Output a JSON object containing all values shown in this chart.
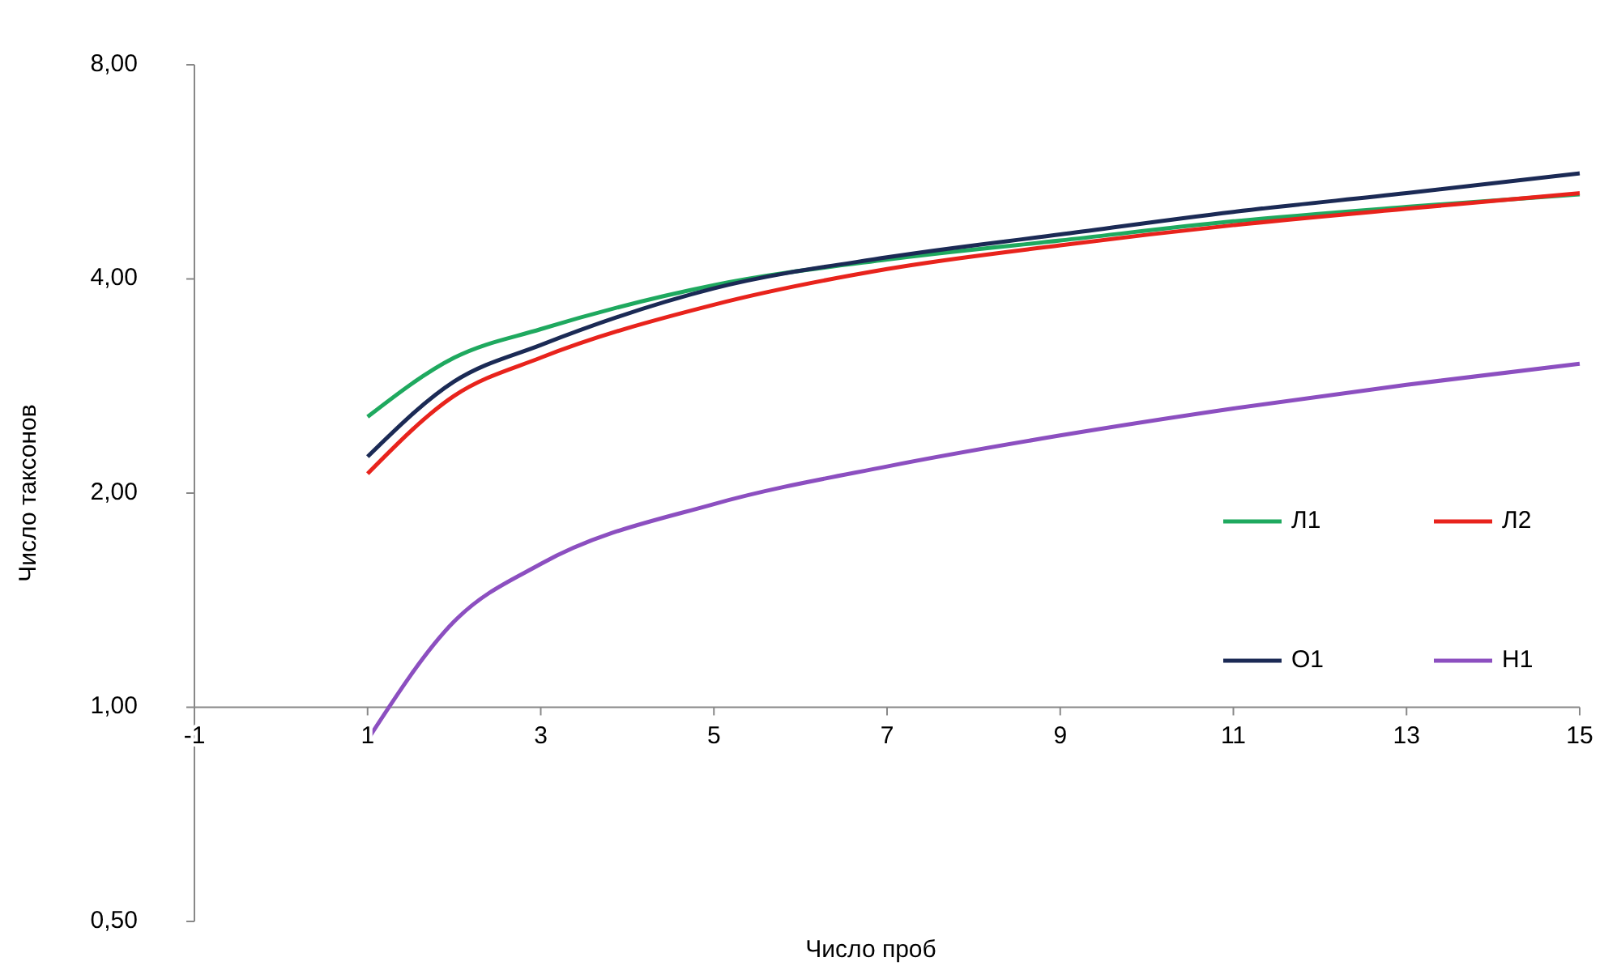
{
  "chart_data": {
    "type": "line",
    "xlabel": "Число проб",
    "ylabel": "Число таксонов",
    "log": "y",
    "grid": false,
    "legend": "right",
    "line_style": "solid",
    "xlim": [
      -1,
      15
    ],
    "xticks": [
      -1,
      1,
      3,
      5,
      7,
      9,
      11,
      13,
      15
    ],
    "ylim": [
      0.5,
      8
    ],
    "yticks": [
      {
        "value": 0.5,
        "label": "0,50"
      },
      {
        "value": 1,
        "label": "1,00"
      },
      {
        "value": 2,
        "label": "2,00"
      },
      {
        "value": 4,
        "label": "4,00"
      },
      {
        "value": 8,
        "label": "8,00"
      }
    ],
    "x": [
      1,
      2,
      3,
      5,
      7,
      9,
      11,
      13,
      15
    ],
    "series": [
      {
        "name": "Л1",
        "color": "#1fa95f",
        "values": [
          2.56,
          3.1,
          3.4,
          3.92,
          4.26,
          4.53,
          4.82,
          5.05,
          5.26
        ]
      },
      {
        "name": "Л2",
        "color": "#e8231c",
        "values": [
          2.13,
          2.74,
          3.1,
          3.68,
          4.13,
          4.46,
          4.76,
          5.02,
          5.28
        ]
      },
      {
        "name": "О1",
        "color": "#1b2a55",
        "values": [
          2.25,
          2.87,
          3.23,
          3.88,
          4.29,
          4.62,
          4.97,
          5.28,
          5.63
        ]
      },
      {
        "name": "Н1",
        "color": "#8c4fc0",
        "values": [
          0.9,
          1.32,
          1.59,
          1.93,
          2.18,
          2.41,
          2.63,
          2.84,
          3.04
        ]
      }
    ]
  }
}
